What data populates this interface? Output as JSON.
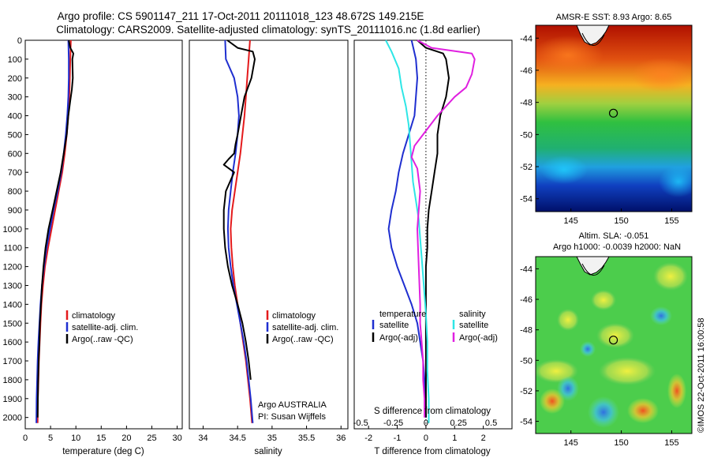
{
  "header": {
    "title_line1": "Argo profile: CS 5901147_211 17-Oct-2011 20111018_123 48.672S 149.215E",
    "title_line2": "Climatology: CARS2009. Satellite-adjusted climatology: synTS_20111016.nc (1.8d earlier)"
  },
  "colors": {
    "climatology": "#e41a1c",
    "satellite": "#1f2fd0",
    "argo": "#000000",
    "satellite_salinity": "#2ee6e6",
    "argo_adj_salinity": "#e020e0",
    "zero_line": "#000000"
  },
  "chart_data": [
    {
      "type": "line",
      "xlabel": "temperature (deg C)",
      "ylabel": "",
      "xlim": [
        0,
        31
      ],
      "ylim": [
        2060,
        0
      ],
      "x_ticks": [
        "0",
        "5",
        "10",
        "15",
        "20",
        "25",
        "30"
      ],
      "y_ticks": [
        "0",
        "100",
        "200",
        "300",
        "400",
        "500",
        "600",
        "700",
        "800",
        "900",
        "1000",
        "1100",
        "1200",
        "1300",
        "1400",
        "1500",
        "1600",
        "1700",
        "1800",
        "1900",
        "2000"
      ],
      "legend": [
        "climatology",
        "satellite-adj. clim.",
        "Argo(..raw -QC)"
      ],
      "legend_placement": "lower-right",
      "series": [
        {
          "name": "climatology",
          "color_key": "climatology",
          "x": [
            9.0,
            8.9,
            8.8,
            8.7,
            8.5,
            8.2,
            7.8,
            7.3,
            6.6,
            5.9,
            5.2,
            4.5,
            3.9,
            3.5,
            3.2,
            3.0,
            2.85,
            2.7,
            2.6,
            2.5,
            2.45
          ],
          "y": [
            0,
            100,
            200,
            300,
            400,
            500,
            600,
            700,
            800,
            900,
            1000,
            1100,
            1200,
            1300,
            1400,
            1500,
            1600,
            1700,
            1800,
            1900,
            2030
          ]
        },
        {
          "name": "satellite-adj. clim.",
          "color_key": "satellite",
          "x": [
            8.5,
            8.6,
            8.6,
            8.5,
            8.3,
            8.0,
            7.6,
            7.1,
            6.4,
            5.6,
            4.9,
            4.2,
            3.7,
            3.3,
            3.0,
            2.8,
            2.6,
            2.45,
            2.35,
            2.25,
            2.2
          ],
          "y": [
            0,
            100,
            200,
            300,
            400,
            500,
            600,
            700,
            800,
            900,
            1000,
            1100,
            1200,
            1300,
            1400,
            1500,
            1600,
            1700,
            1800,
            1900,
            2030
          ]
        },
        {
          "name": "Argo(..raw -QC)",
          "color_key": "argo",
          "x": [
            8.6,
            8.9,
            9.5,
            9.3,
            9.4,
            9.2,
            8.9,
            8.5,
            8.2,
            7.6,
            7.0,
            6.2,
            5.4,
            4.6,
            4.0,
            3.6,
            3.3,
            3.1,
            2.9,
            2.8,
            2.65,
            2.55,
            2.5,
            2.45
          ],
          "y": [
            0,
            40,
            70,
            100,
            200,
            260,
            320,
            400,
            500,
            600,
            700,
            800,
            900,
            1000,
            1100,
            1200,
            1300,
            1400,
            1500,
            1600,
            1700,
            1800,
            1900,
            2000
          ]
        }
      ]
    },
    {
      "type": "line",
      "xlabel": "salinity",
      "ylabel": "",
      "xlim": [
        33.8,
        36.1
      ],
      "ylim": [
        2060,
        0
      ],
      "x_ticks": [
        "34",
        "34.5",
        "35",
        "35.5",
        "36"
      ],
      "legend": [
        "climatology",
        "satellite-adj. clim.",
        "Argo(..raw -QC)"
      ],
      "legend_placement": "lower-right",
      "annotations": [
        "Argo AUSTRALIA",
        "PI: Susan Wijffels"
      ],
      "series": [
        {
          "name": "climatology",
          "color_key": "climatology",
          "x": [
            34.68,
            34.66,
            34.64,
            34.62,
            34.6,
            34.57,
            34.54,
            34.5,
            34.46,
            34.42,
            34.4,
            34.41,
            34.43,
            34.46,
            34.5,
            34.54,
            34.58,
            34.62,
            34.65,
            34.68,
            34.71
          ],
          "y": [
            0,
            100,
            200,
            300,
            400,
            500,
            600,
            700,
            800,
            900,
            1000,
            1100,
            1200,
            1300,
            1400,
            1500,
            1600,
            1700,
            1800,
            1900,
            2030
          ]
        },
        {
          "name": "satellite-adj. clim.",
          "color_key": "satellite",
          "x": [
            34.32,
            34.33,
            34.45,
            34.5,
            34.52,
            34.5,
            34.47,
            34.43,
            34.4,
            34.37,
            34.36,
            34.37,
            34.4,
            34.44,
            34.49,
            34.54,
            34.59,
            34.63,
            34.66,
            34.69,
            34.72
          ],
          "y": [
            0,
            100,
            200,
            300,
            400,
            500,
            600,
            700,
            800,
            900,
            1000,
            1100,
            1200,
            1300,
            1400,
            1500,
            1600,
            1700,
            1800,
            1900,
            2030
          ]
        },
        {
          "name": "Argo(..raw -QC)",
          "color_key": "argo",
          "x": [
            34.35,
            34.5,
            34.72,
            34.75,
            34.7,
            34.6,
            34.55,
            34.5,
            34.47,
            34.45,
            34.37,
            34.3,
            34.45,
            34.33,
            34.3,
            34.3,
            34.32,
            34.36,
            34.42,
            34.5,
            34.57,
            34.62,
            34.66,
            34.69
          ],
          "y": [
            0,
            40,
            60,
            100,
            200,
            300,
            400,
            500,
            550,
            600,
            630,
            660,
            700,
            800,
            900,
            1000,
            1100,
            1200,
            1300,
            1400,
            1500,
            1600,
            1700,
            1800
          ]
        }
      ]
    },
    {
      "type": "line",
      "xlabel": "T difference from climatology",
      "ylabel": "",
      "xlim": [
        -2.5,
        3.0
      ],
      "ylim": [
        2060,
        0
      ],
      "x_ticks": [
        "-2",
        "-1",
        "0",
        "1",
        "2"
      ],
      "secondary_xlabel": "S difference from climatology",
      "secondary_x_ticks": [
        "-0.5",
        "-0.25",
        "0",
        "0.25",
        "0.5"
      ],
      "legend": [
        "temperature",
        "satellite",
        "Argo(-adj)",
        "salinity",
        "satellite",
        "Argo(-adj)"
      ],
      "legend_placement": "lower-center",
      "series": [
        {
          "name": "satellite",
          "group": "temperature",
          "color_key": "satellite",
          "x": [
            -0.5,
            -0.35,
            -0.3,
            -0.35,
            -0.4,
            -0.6,
            -0.8,
            -0.95,
            -1.05,
            -1.2,
            -1.3,
            -1.2,
            -1.0,
            -0.75,
            -0.5,
            -0.3,
            -0.2,
            -0.1,
            -0.05,
            -0.02,
            0.0
          ],
          "y": [
            0,
            100,
            200,
            300,
            400,
            500,
            600,
            700,
            800,
            900,
            1000,
            1100,
            1200,
            1300,
            1400,
            1500,
            1600,
            1700,
            1800,
            1900,
            2000
          ]
        },
        {
          "name": "Argo(-adj)",
          "group": "temperature",
          "color_key": "argo",
          "x": [
            -0.3,
            0.0,
            0.6,
            0.7,
            0.8,
            0.7,
            0.5,
            0.4,
            0.4,
            0.3,
            0.2,
            0.1,
            0.05,
            0.05,
            0.0,
            0.0,
            0.0,
            0.0,
            0.0,
            0.0
          ],
          "y": [
            0,
            40,
            70,
            100,
            200,
            300,
            400,
            500,
            600,
            700,
            800,
            900,
            1000,
            1100,
            1200,
            1400,
            1600,
            1800,
            1900,
            2000
          ]
        },
        {
          "name": "satellite",
          "group": "salinity",
          "color_key": "satellite_salinity",
          "x": [
            -1.4,
            -1.2,
            -0.95,
            -0.85,
            -0.7,
            -0.6,
            -0.55,
            -0.5,
            -0.45,
            -0.35,
            -0.25,
            -0.2,
            -0.15,
            -0.1,
            -0.05,
            0.0,
            0.05,
            0.05,
            0.1,
            0.1
          ],
          "y": [
            0,
            60,
            150,
            250,
            350,
            450,
            550,
            650,
            750,
            850,
            950,
            1050,
            1150,
            1250,
            1350,
            1450,
            1600,
            1750,
            1900,
            2030
          ]
        },
        {
          "name": "Argo(-adj)",
          "group": "salinity",
          "color_key": "argo_adj_salinity",
          "x": [
            -0.3,
            0.2,
            1.6,
            1.7,
            1.6,
            1.4,
            1.0,
            0.4,
            -0.1,
            -0.4,
            -0.5,
            -0.3,
            -0.2,
            -0.3,
            -0.25,
            -0.2,
            -0.2,
            -0.15,
            -0.1,
            -0.1,
            -0.05,
            -0.05
          ],
          "y": [
            0,
            40,
            70,
            100,
            180,
            250,
            300,
            400,
            500,
            560,
            620,
            680,
            800,
            1000,
            1200,
            1400,
            1500,
            1600,
            1700,
            1800,
            1900,
            2000
          ]
        }
      ]
    },
    {
      "type": "heatmap",
      "title": "AMSR-E SST: 8.93 Argo: 8.65",
      "x_ticks": [
        "145",
        "150",
        "155"
      ],
      "y_ticks": [
        "-44",
        "-46",
        "-48",
        "-50",
        "-52",
        "-54"
      ],
      "xlim": [
        141.5,
        157
      ],
      "ylim": [
        -54.8,
        -43.2
      ],
      "marker": {
        "lon": 149.215,
        "lat": -48.672
      }
    },
    {
      "type": "heatmap",
      "title": "Altim. SLA: -0.051",
      "subtitle": "Argo h1000: -0.0039 h2000: NaN",
      "x_ticks": [
        "145",
        "150",
        "155"
      ],
      "y_ticks": [
        "-44",
        "-46",
        "-48",
        "-50",
        "-52",
        "-54"
      ],
      "xlim": [
        141.5,
        157
      ],
      "ylim": [
        -54.8,
        -43.2
      ],
      "marker": {
        "lon": 149.215,
        "lat": -48.672
      }
    }
  ],
  "footer": {
    "stamp": "©IMOS 22-Oct-2011 16:00:58"
  }
}
